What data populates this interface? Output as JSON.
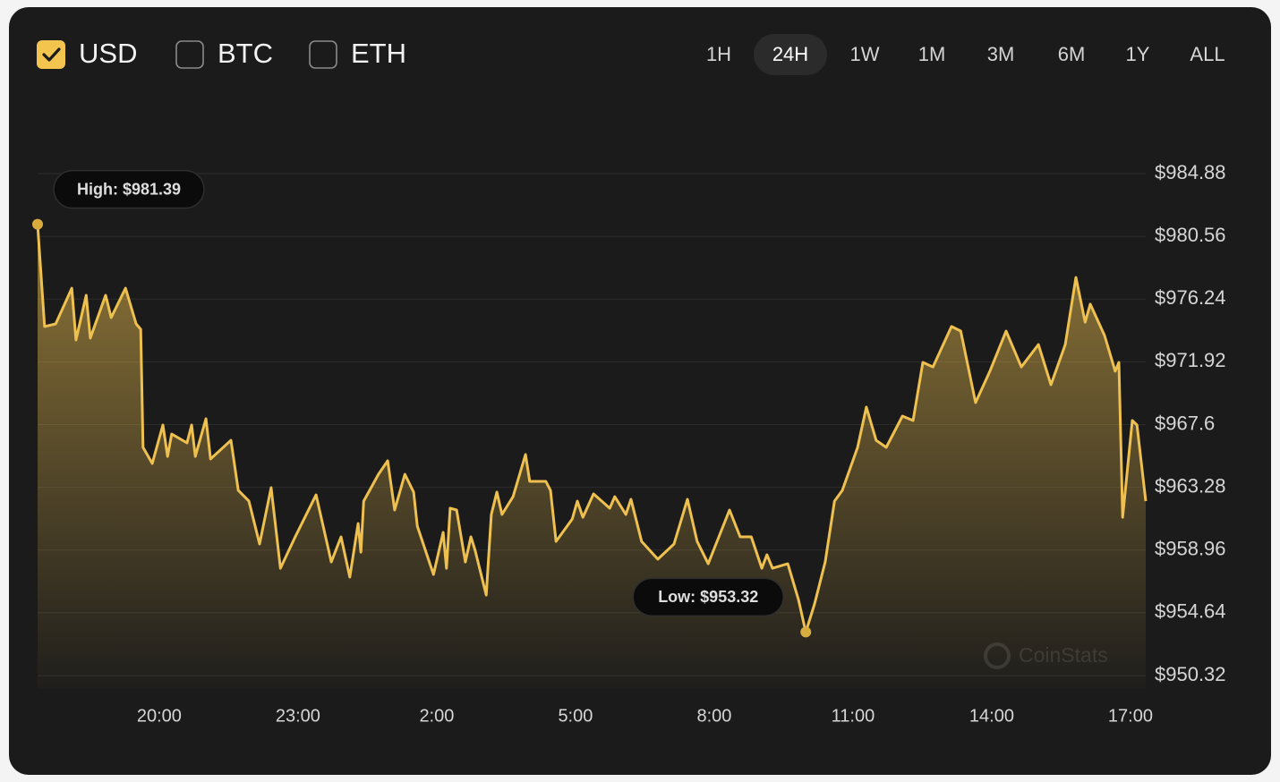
{
  "controls": {
    "currencies": [
      {
        "label": "USD",
        "checked": true
      },
      {
        "label": "BTC",
        "checked": false
      },
      {
        "label": "ETH",
        "checked": false
      }
    ],
    "ranges": [
      {
        "label": "1H",
        "selected": false
      },
      {
        "label": "24H",
        "selected": true
      },
      {
        "label": "1W",
        "selected": false
      },
      {
        "label": "1M",
        "selected": false
      },
      {
        "label": "3M",
        "selected": false
      },
      {
        "label": "6M",
        "selected": false
      },
      {
        "label": "1Y",
        "selected": false
      },
      {
        "label": "ALL",
        "selected": false
      }
    ]
  },
  "chart_data": {
    "type": "area",
    "watermark": "CoinStats",
    "xlim": [
      17.37,
      41.33
    ],
    "xticks": [
      {
        "value": 20,
        "label": "20:00"
      },
      {
        "value": 23,
        "label": "23:00"
      },
      {
        "value": 26,
        "label": "2:00"
      },
      {
        "value": 29,
        "label": "5:00"
      },
      {
        "value": 32,
        "label": "8:00"
      },
      {
        "value": 35,
        "label": "11:00"
      },
      {
        "value": 38,
        "label": "14:00"
      },
      {
        "value": 41,
        "label": "17:00"
      }
    ],
    "ylim": [
      949.4,
      987.59
    ],
    "yticks": [
      {
        "value": 984.88,
        "label": "$984.88"
      },
      {
        "value": 980.56,
        "label": "$980.56"
      },
      {
        "value": 976.24,
        "label": "$976.24"
      },
      {
        "value": 971.92,
        "label": "$971.92"
      },
      {
        "value": 967.6,
        "label": "$967.6"
      },
      {
        "value": 963.28,
        "label": "$963.28"
      },
      {
        "value": 958.96,
        "label": "$958.96"
      },
      {
        "value": 954.64,
        "label": "$954.64"
      },
      {
        "value": 950.32,
        "label": "$950.32"
      }
    ],
    "grid": true,
    "annotations": [
      {
        "text": "High: $981.39",
        "x": 17.37,
        "y": 981.39
      },
      {
        "text": "Low: $953.32",
        "x": 33.98,
        "y": 953.32
      }
    ],
    "series": [
      {
        "name": "USD",
        "color": "#eec04f",
        "x": [
          17.37,
          17.52,
          17.76,
          18.11,
          18.2,
          18.42,
          18.51,
          18.84,
          18.96,
          19.27,
          19.5,
          19.6,
          19.65,
          19.85,
          20.08,
          20.18,
          20.27,
          20.6,
          20.7,
          20.78,
          21.01,
          21.11,
          21.55,
          21.71,
          21.94,
          22.17,
          22.42,
          22.62,
          22.94,
          23.39,
          23.72,
          23.93,
          24.12,
          24.3,
          24.36,
          24.42,
          24.74,
          24.94,
          25.09,
          25.31,
          25.5,
          25.58,
          25.93,
          26.14,
          26.21,
          26.29,
          26.43,
          26.62,
          26.74,
          26.83,
          27.07,
          27.18,
          27.3,
          27.41,
          27.65,
          27.92,
          28.01,
          28.36,
          28.46,
          28.58,
          28.93,
          29.04,
          29.16,
          29.39,
          29.74,
          29.85,
          30.09,
          30.2,
          30.43,
          30.78,
          31.13,
          31.42,
          31.63,
          31.87,
          32.33,
          32.56,
          32.8,
          33.03,
          33.14,
          33.26,
          33.59,
          33.82,
          33.98,
          34.17,
          34.4,
          34.6,
          34.77,
          35.1,
          35.29,
          35.5,
          35.72,
          36.07,
          36.3,
          36.51,
          36.73,
          37.13,
          37.33,
          37.65,
          37.96,
          38.31,
          38.64,
          39.01,
          39.28,
          39.59,
          39.82,
          40.02,
          40.13,
          40.44,
          40.67,
          40.75,
          40.83,
          41.04,
          41.14,
          41.33
        ],
        "values": [
          981.39,
          974.35,
          974.53,
          976.99,
          973.42,
          976.5,
          973.55,
          976.5,
          974.96,
          976.99,
          974.53,
          974.16,
          966.03,
          964.92,
          967.57,
          965.41,
          966.95,
          966.34,
          967.57,
          965.41,
          968.0,
          965.23,
          966.52,
          963.07,
          962.33,
          959.38,
          963.26,
          957.71,
          959.87,
          962.76,
          958.14,
          959.87,
          957.1,
          960.79,
          958.82,
          962.33,
          964.18,
          965.11,
          961.72,
          964.18,
          962.95,
          960.61,
          957.28,
          960.18,
          957.71,
          961.84,
          961.72,
          958.14,
          959.87,
          958.94,
          955.86,
          961.41,
          962.95,
          961.41,
          962.64,
          965.54,
          963.69,
          963.69,
          963.07,
          959.56,
          961.1,
          962.33,
          961.22,
          962.83,
          961.84,
          962.64,
          961.41,
          962.46,
          959.56,
          958.33,
          959.38,
          962.46,
          959.56,
          958.02,
          961.72,
          959.87,
          959.87,
          957.71,
          958.64,
          957.71,
          958.02,
          955.56,
          953.32,
          955.25,
          958.14,
          962.33,
          963.07,
          966.03,
          968.8,
          966.52,
          966.03,
          968.19,
          967.88,
          971.88,
          971.57,
          974.35,
          974.04,
          969.11,
          971.27,
          974.04,
          971.57,
          973.11,
          970.34,
          973.11,
          977.73,
          974.65,
          975.89,
          973.73,
          971.27,
          971.88,
          961.22,
          967.88,
          967.57,
          962.33
        ]
      }
    ]
  }
}
